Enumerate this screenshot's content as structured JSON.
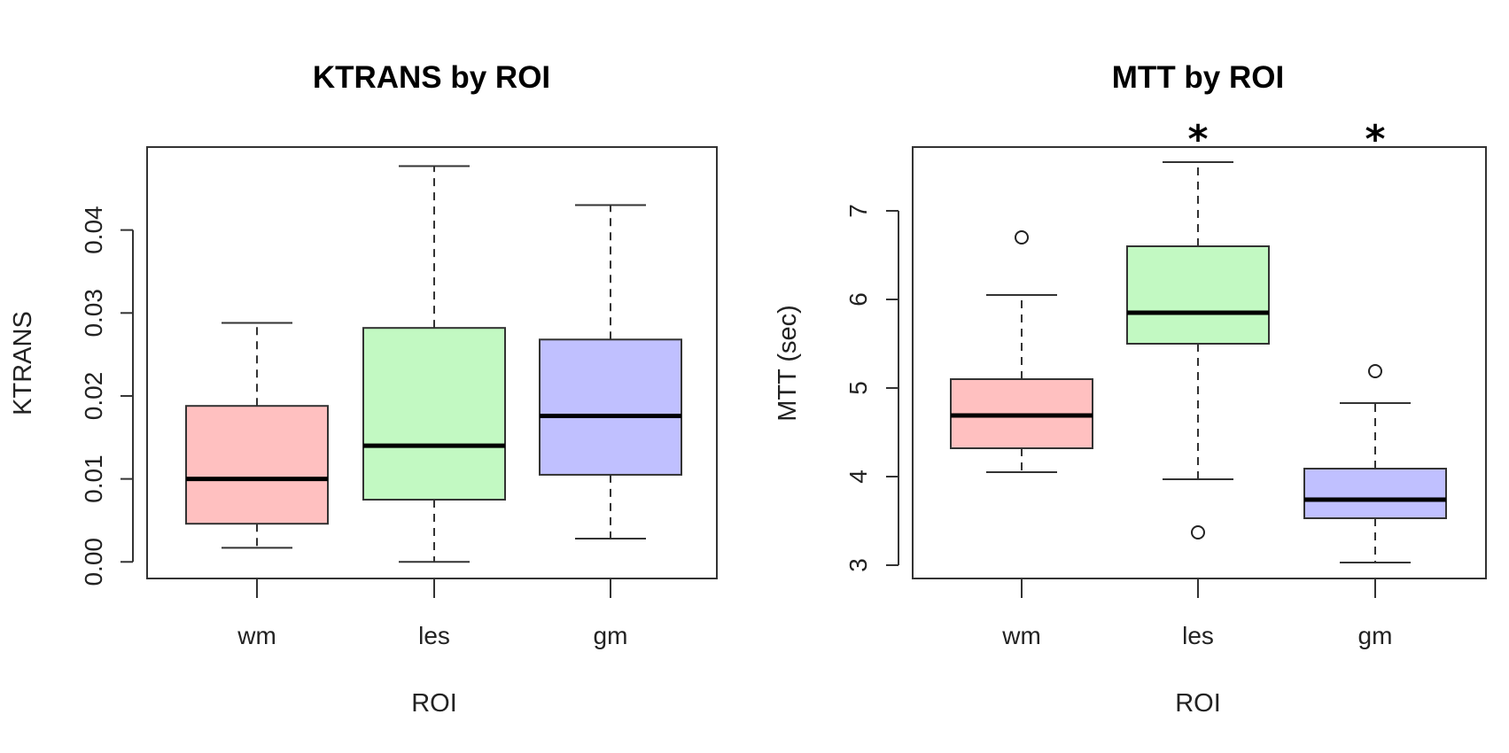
{
  "chart_data": [
    {
      "type": "boxplot",
      "title": "KTRANS by ROI",
      "xlabel": "ROI",
      "ylabel": "KTRANS",
      "ylim": [
        -0.002,
        0.05
      ],
      "yticks": [
        "0.00",
        "0.01",
        "0.02",
        "0.03",
        "0.04"
      ],
      "ytick_values": [
        0.0,
        0.01,
        0.02,
        0.03,
        0.04
      ],
      "categories": [
        "wm",
        "les",
        "gm"
      ],
      "colors": [
        "#ffc0c0",
        "#c2f9c2",
        "#c0c0ff"
      ],
      "boxes": [
        {
          "min": 0.0017,
          "q1": 0.0046,
          "median": 0.01,
          "q3": 0.0188,
          "max": 0.0288,
          "outliers": []
        },
        {
          "min": 0.0,
          "q1": 0.0075,
          "median": 0.014,
          "q3": 0.0282,
          "max": 0.0477,
          "outliers": []
        },
        {
          "min": 0.0028,
          "q1": 0.0105,
          "median": 0.0176,
          "q3": 0.0268,
          "max": 0.043,
          "outliers": []
        }
      ],
      "annotations": [
        "",
        "",
        ""
      ]
    },
    {
      "type": "boxplot",
      "title": "MTT by ROI",
      "xlabel": "ROI",
      "ylabel": "MTT (sec)",
      "ylim": [
        2.85,
        7.72
      ],
      "yticks": [
        "3",
        "4",
        "5",
        "6",
        "7"
      ],
      "ytick_values": [
        3,
        4,
        5,
        6,
        7
      ],
      "categories": [
        "wm",
        "les",
        "gm"
      ],
      "colors": [
        "#ffc0c0",
        "#c2f9c2",
        "#c0c0ff"
      ],
      "boxes": [
        {
          "min": 4.05,
          "q1": 4.32,
          "median": 4.69,
          "q3": 5.1,
          "max": 6.05,
          "outliers": [
            6.7
          ]
        },
        {
          "min": 3.97,
          "q1": 5.5,
          "median": 5.85,
          "q3": 6.6,
          "max": 7.55,
          "outliers": [
            3.37
          ]
        },
        {
          "min": 3.03,
          "q1": 3.53,
          "median": 3.74,
          "q3": 4.09,
          "max": 4.83,
          "outliers": [
            5.19
          ]
        }
      ],
      "annotations": [
        "",
        "*",
        "*"
      ]
    }
  ]
}
